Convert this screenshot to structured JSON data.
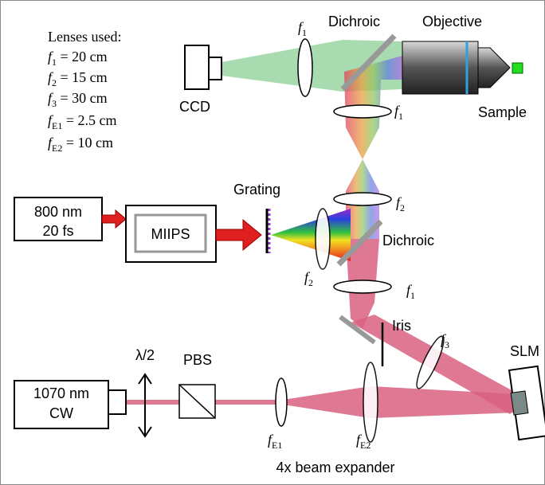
{
  "legend": {
    "title": "Lenses used:",
    "lines": [
      {
        "symbol": "f",
        "subscript": "1",
        "text": " = 20 cm"
      },
      {
        "symbol": "f",
        "subscript": "2",
        "text": " = 15 cm"
      },
      {
        "symbol": "f",
        "subscript": "3",
        "text": " = 30 cm"
      },
      {
        "symbol": "f",
        "subscript": "E1",
        "text": " = 2.5 cm"
      },
      {
        "symbol": "f",
        "subscript": "E2",
        "text": " = 10 cm"
      }
    ]
  },
  "nodes": {
    "ccd": "CCD",
    "dichroic_top": "Dichroic",
    "objective": "Objective",
    "sample": "Sample",
    "grating": "Grating",
    "laser_800": [
      "800 nm",
      "20 fs"
    ],
    "miips": "MIIPS",
    "dichroic_mid": "Dichroic",
    "iris": "Iris",
    "slm": "SLM",
    "laser_1070": [
      "1070 nm",
      "CW"
    ],
    "waveplate": "λ/2",
    "pbs": "PBS",
    "expander": "4x beam expander"
  },
  "lens_labels": [
    {
      "symbol": "f",
      "subscript": "1"
    },
    {
      "symbol": "f",
      "subscript": "1"
    },
    {
      "symbol": "f",
      "subscript": "2"
    },
    {
      "symbol": "f",
      "subscript": "2"
    },
    {
      "symbol": "f",
      "subscript": "1"
    },
    {
      "symbol": "f",
      "subscript": "3"
    },
    {
      "symbol": "f",
      "subscript": "E1"
    },
    {
      "symbol": "f",
      "subscript": "E2"
    }
  ]
}
